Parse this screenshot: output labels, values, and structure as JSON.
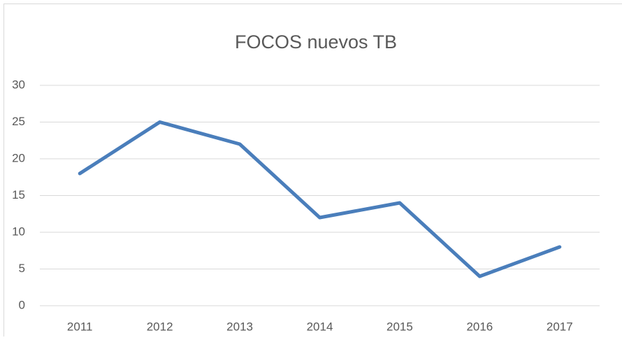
{
  "chart_data": {
    "type": "line",
    "title": "FOCOS nuevos TB",
    "categories": [
      "2011",
      "2012",
      "2013",
      "2014",
      "2015",
      "2016",
      "2017"
    ],
    "values": [
      18,
      25,
      22,
      12,
      14,
      4,
      8
    ],
    "color": "#4a7ebb",
    "ylim": [
      0,
      30
    ],
    "yticks": [
      0,
      5,
      10,
      15,
      20,
      25,
      30
    ],
    "grid": true
  }
}
